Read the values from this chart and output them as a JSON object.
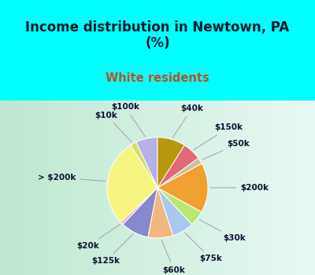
{
  "title": "Income distribution in Newtown, PA\n(%)",
  "subtitle": "White residents",
  "title_color": "#0a1a2a",
  "subtitle_color": "#c05020",
  "bg_color": "#00ffff",
  "chart_bg_left": "#c8e8c8",
  "chart_bg_right": "#e8f8f8",
  "labels": [
    "$100k",
    "$10k",
    "> $200k",
    "$20k",
    "$125k",
    "$60k",
    "$75k",
    "$30k",
    "$200k",
    "$50k",
    "$150k",
    "$40k"
  ],
  "values": [
    7,
    2,
    28,
    1,
    9,
    8,
    7,
    5,
    16,
    2,
    6,
    9
  ],
  "colors": [
    "#b8b0e8",
    "#d0e070",
    "#f5f580",
    "#ffb0c0",
    "#8888cc",
    "#f0b880",
    "#a8c8f0",
    "#b8e870",
    "#f0a030",
    "#c8c0a0",
    "#e06878",
    "#b8980c"
  ],
  "startangle": 90,
  "label_fontsize": 7.5,
  "title_fontsize": 12,
  "subtitle_fontsize": 10.5
}
